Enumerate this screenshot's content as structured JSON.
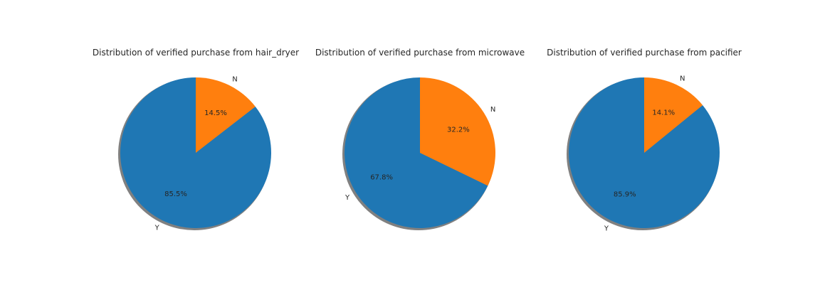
{
  "colors": {
    "background": "#ffffff",
    "series_Y": "#1f77b4",
    "series_N": "#ff7f0e",
    "shadow": "#808080",
    "text": "#262626"
  },
  "chart_data": [
    {
      "type": "pie",
      "title": "Distribution of verified purchase from hair_dryer",
      "labels": [
        "Y",
        "N"
      ],
      "values": [
        85.5,
        14.5
      ],
      "value_labels": [
        "85.5%",
        "14.5%"
      ],
      "start_angle_deg": 90,
      "direction": "counterclockwise",
      "shadow": true
    },
    {
      "type": "pie",
      "title": "Distribution of verified purchase from microwave",
      "labels": [
        "Y",
        "N"
      ],
      "values": [
        67.8,
        32.2
      ],
      "value_labels": [
        "67.8%",
        "32.2%"
      ],
      "start_angle_deg": 90,
      "direction": "counterclockwise",
      "shadow": true
    },
    {
      "type": "pie",
      "title": "Distribution of verified purchase from pacifier",
      "labels": [
        "Y",
        "N"
      ],
      "values": [
        85.9,
        14.1
      ],
      "value_labels": [
        "85.9%",
        "14.1%"
      ],
      "start_angle_deg": 90,
      "direction": "counterclockwise",
      "shadow": true
    }
  ]
}
